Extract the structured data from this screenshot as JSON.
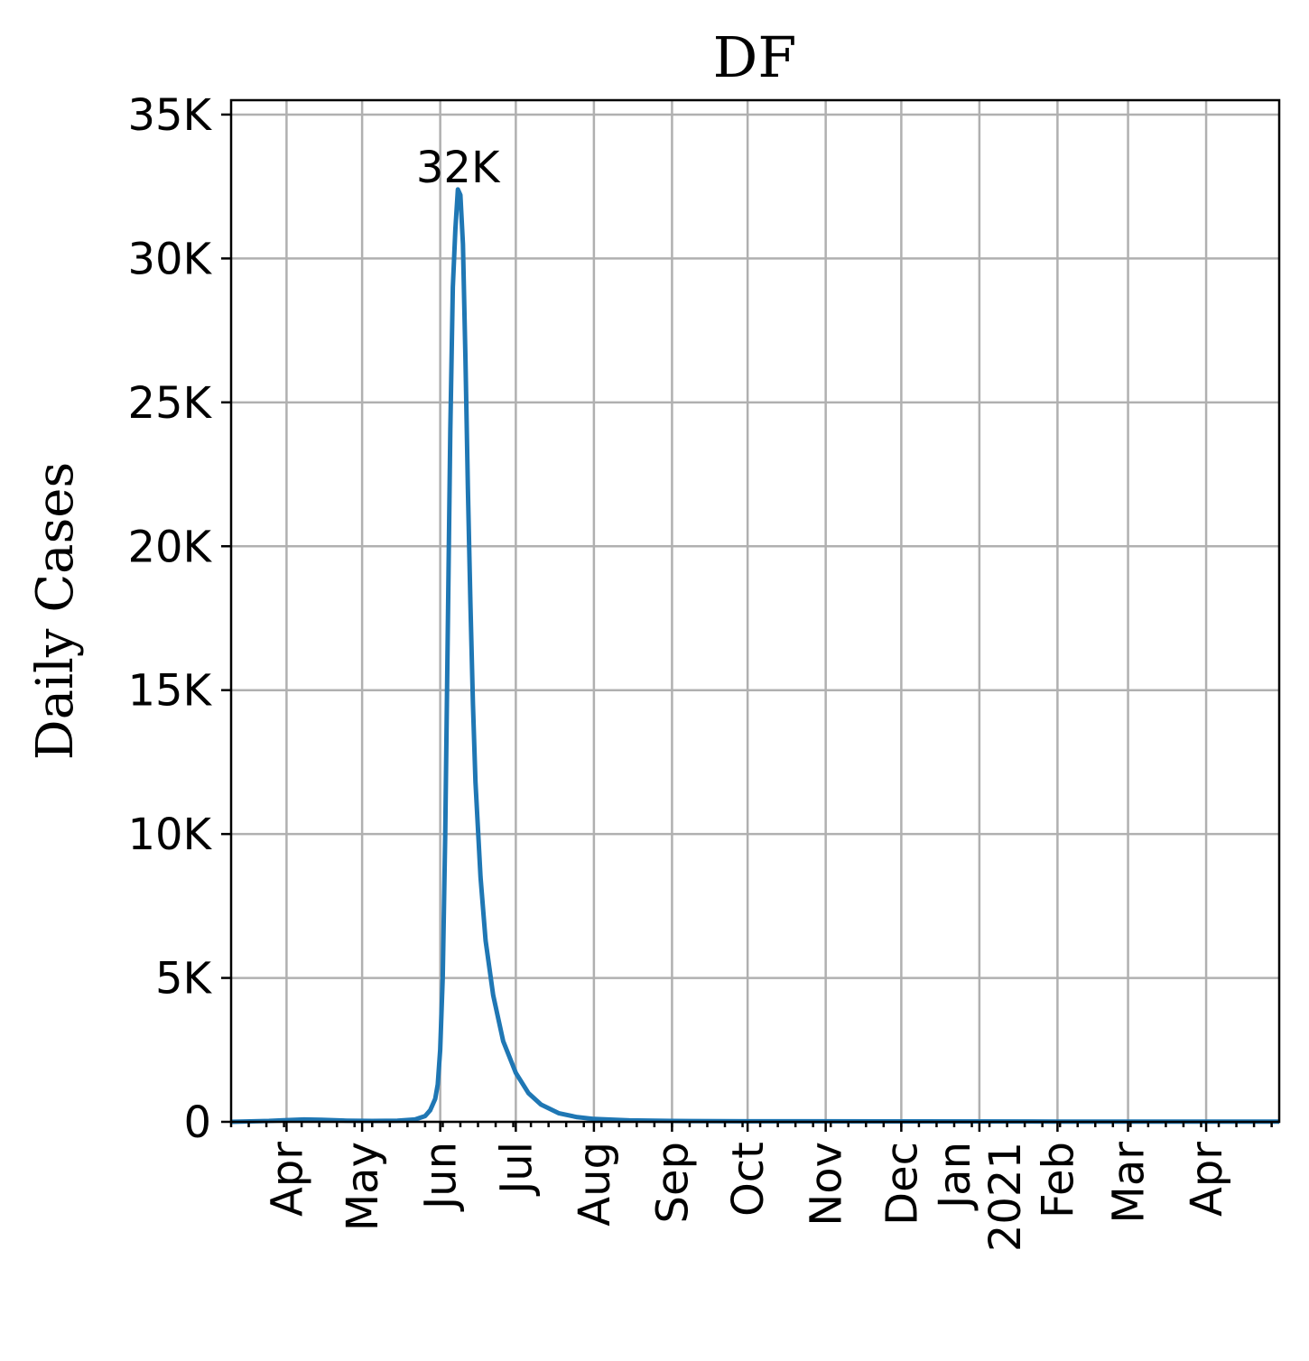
{
  "chart_data": {
    "type": "line",
    "title": "DF",
    "xlabel": "",
    "ylabel": "Daily Cases",
    "grid": true,
    "x_start": "2020-03-10",
    "x_end": "2021-04-30",
    "ylim": [
      0,
      35500
    ],
    "y_ticks": [
      0,
      5000,
      10000,
      15000,
      20000,
      25000,
      30000,
      35000
    ],
    "y_tick_labels": [
      "0",
      "5K",
      "10K",
      "15K",
      "20K",
      "25K",
      "30K",
      "35K"
    ],
    "x_ticks": [
      {
        "date": "2020-04-01",
        "label": "Apr"
      },
      {
        "date": "2020-05-01",
        "label": "May"
      },
      {
        "date": "2020-06-01",
        "label": "Jun"
      },
      {
        "date": "2020-07-01",
        "label": "Jul"
      },
      {
        "date": "2020-08-01",
        "label": "Aug"
      },
      {
        "date": "2020-09-01",
        "label": "Sep"
      },
      {
        "date": "2020-10-01",
        "label": "Oct"
      },
      {
        "date": "2020-11-01",
        "label": "Nov"
      },
      {
        "date": "2020-12-01",
        "label": "Dec"
      },
      {
        "date": "2021-01-01",
        "label": "Jan\n2021"
      },
      {
        "date": "2021-02-01",
        "label": "Feb"
      },
      {
        "date": "2021-03-01",
        "label": "Mar"
      },
      {
        "date": "2021-04-01",
        "label": "Apr"
      }
    ],
    "series": [
      {
        "name": "Daily Cases",
        "color": "#1f77b4",
        "points": [
          [
            "2020-03-10",
            0
          ],
          [
            "2020-03-25",
            30
          ],
          [
            "2020-04-01",
            60
          ],
          [
            "2020-04-08",
            80
          ],
          [
            "2020-04-15",
            70
          ],
          [
            "2020-04-25",
            40
          ],
          [
            "2020-05-05",
            30
          ],
          [
            "2020-05-15",
            40
          ],
          [
            "2020-05-22",
            80
          ],
          [
            "2020-05-26",
            200
          ],
          [
            "2020-05-28",
            400
          ],
          [
            "2020-05-30",
            800
          ],
          [
            "2020-05-31",
            1300
          ],
          [
            "2020-06-01",
            2500
          ],
          [
            "2020-06-02",
            5000
          ],
          [
            "2020-06-03",
            10000
          ],
          [
            "2020-06-04",
            17000
          ],
          [
            "2020-06-05",
            24000
          ],
          [
            "2020-06-06",
            29000
          ],
          [
            "2020-06-07",
            31000
          ],
          [
            "2020-06-08",
            32400
          ],
          [
            "2020-06-09",
            32200
          ],
          [
            "2020-06-10",
            30500
          ],
          [
            "2020-06-11",
            26500
          ],
          [
            "2020-06-12",
            22000
          ],
          [
            "2020-06-13",
            18000
          ],
          [
            "2020-06-14",
            14500
          ],
          [
            "2020-06-15",
            11800
          ],
          [
            "2020-06-17",
            8500
          ],
          [
            "2020-06-19",
            6300
          ],
          [
            "2020-06-22",
            4400
          ],
          [
            "2020-06-26",
            2800
          ],
          [
            "2020-07-01",
            1700
          ],
          [
            "2020-07-06",
            1000
          ],
          [
            "2020-07-11",
            600
          ],
          [
            "2020-07-18",
            300
          ],
          [
            "2020-07-25",
            170
          ],
          [
            "2020-08-01",
            100
          ],
          [
            "2020-08-15",
            50
          ],
          [
            "2020-09-01",
            30
          ],
          [
            "2020-10-01",
            20
          ],
          [
            "2020-12-01",
            15
          ],
          [
            "2021-02-01",
            10
          ],
          [
            "2021-04-30",
            10
          ]
        ]
      }
    ],
    "annotations": [
      {
        "text": "32K",
        "date": "2020-06-08",
        "value": 32400
      }
    ]
  }
}
